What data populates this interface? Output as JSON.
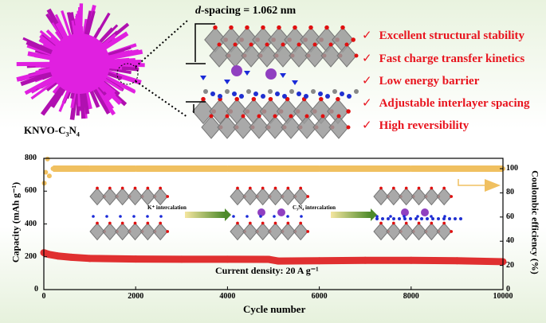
{
  "header": {
    "material_label": "KNVO-C3N4",
    "material_label_parts": {
      "main": "KNVO-C",
      "sub1": "3",
      "mid": "N",
      "sub2": "4"
    },
    "d_spacing_italic": "d",
    "d_spacing_rest": "-spacing = 1.062 nm",
    "advantages": [
      "Excellent structural stability",
      "Fast charge transfer kinetics",
      "Low energy barrier",
      "Adjustable interlayer spacing",
      "High reversibility"
    ],
    "check_icon": "check-mark-icon"
  },
  "inset": {
    "step1_label": "K⁺ intercalation",
    "step2_label": "C₃N₄ intercalation"
  },
  "colors": {
    "capacity": "#e03030",
    "efficiency": "#f0c060",
    "advantage_text": "#e8141e",
    "nanostructure": "#e020e0"
  },
  "chart_data": {
    "type": "scatter",
    "xlabel": "Cycle number",
    "ylabel": "Capacity (mAh g⁻¹)",
    "y2label": "Coulombic efficiency (%)",
    "annotation": "Current density: 20 A g⁻¹",
    "xlim": [
      0,
      10000
    ],
    "ylim": [
      0,
      800
    ],
    "y2lim": [
      0,
      110
    ],
    "xticks": [
      "0",
      "2000",
      "4000",
      "6000",
      "8000",
      "10000"
    ],
    "yticks": [
      "0",
      "200",
      "400",
      "600",
      "800"
    ],
    "y2ticks": [
      "0",
      "20",
      "40",
      "60",
      "80",
      "100"
    ],
    "grid": false,
    "series": [
      {
        "axis": "left",
        "x": [
          0,
          100,
          300,
          600,
          1000,
          2000,
          3000,
          4000,
          4900,
          5100,
          6000,
          7000,
          8000,
          9000,
          10000
        ],
        "values": [
          225,
          215,
          205,
          197,
          190,
          186,
          185,
          185,
          184,
          174,
          176,
          178,
          178,
          176,
          170
        ]
      },
      {
        "axis": "right",
        "x": [
          10,
          40,
          80,
          120,
          200,
          1000,
          2000,
          4000,
          6000,
          8000,
          10000
        ],
        "values": [
          88,
          97,
          108,
          94,
          100,
          100,
          100,
          100,
          100,
          100,
          100
        ]
      }
    ]
  }
}
